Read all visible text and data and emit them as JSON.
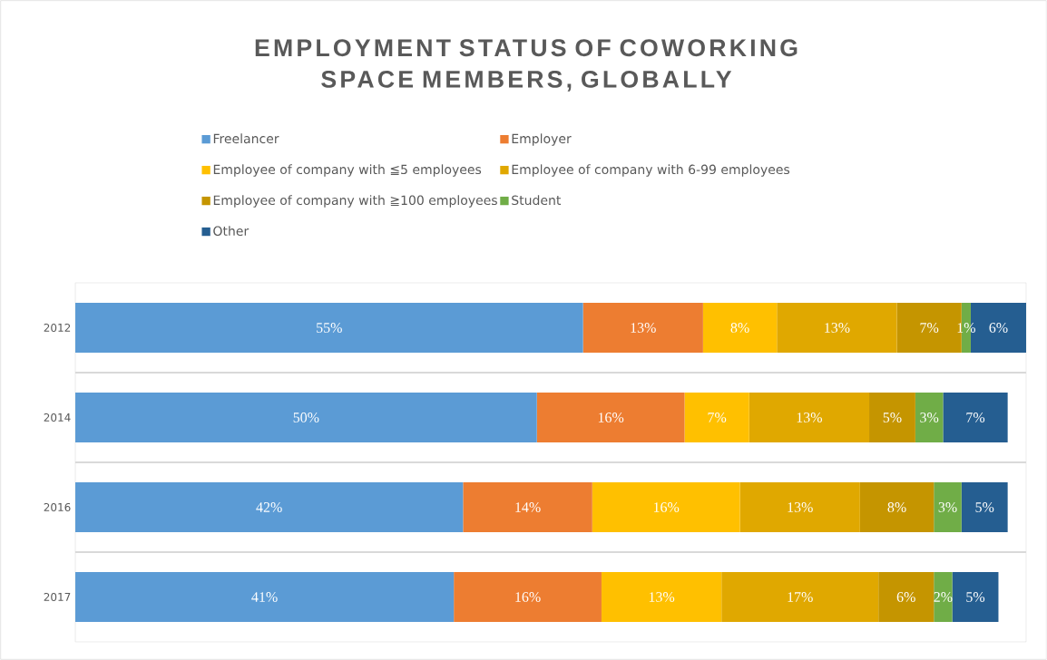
{
  "chart_data": {
    "type": "bar",
    "title": "EMPLOYMENT STATUS OF COWORKING SPACE MEMBERS, GLOBALLY",
    "categories": [
      "2012",
      "2014",
      "2016",
      "2017"
    ],
    "orientation": "horizontal",
    "stacked": true,
    "legend": "top",
    "grid": "y",
    "series": [
      {
        "name": "Freelancer",
        "color": "#5b9bd5",
        "values": [
          55,
          50,
          42,
          41
        ],
        "value_labels": [
          "55%",
          "50%",
          "42%",
          "41%"
        ]
      },
      {
        "name": "Employer",
        "color": "#ed7d31",
        "values": [
          13,
          16,
          14,
          16
        ],
        "value_labels": [
          "13%",
          "16%",
          "14%",
          "16%"
        ]
      },
      {
        "name": "Employee of company with ≦5 employees",
        "color": "#ffc000",
        "values": [
          8,
          7,
          16,
          13
        ],
        "value_labels": [
          "8%",
          "7%",
          "16%",
          "13%"
        ]
      },
      {
        "name": "Employee of company with 6-99 employees",
        "color": "#e0a800",
        "values": [
          13,
          13,
          13,
          17
        ],
        "value_labels": [
          "13%",
          "13%",
          "13%",
          "17%"
        ]
      },
      {
        "name": "Employee of company with ≧100 employees",
        "color": "#c59500",
        "values": [
          7,
          5,
          8,
          6
        ],
        "value_labels": [
          "7%",
          "5%",
          "8%",
          "6%"
        ]
      },
      {
        "name": "Student",
        "color": "#70ad47",
        "values": [
          1,
          3,
          3,
          2
        ],
        "value_labels": [
          "1%",
          "3%",
          "3%",
          "2%"
        ]
      },
      {
        "name": "Other",
        "color": "#255e91",
        "values": [
          6,
          7,
          5,
          5
        ],
        "value_labels": [
          "6%",
          "7%",
          "5%",
          "5%"
        ]
      }
    ]
  }
}
